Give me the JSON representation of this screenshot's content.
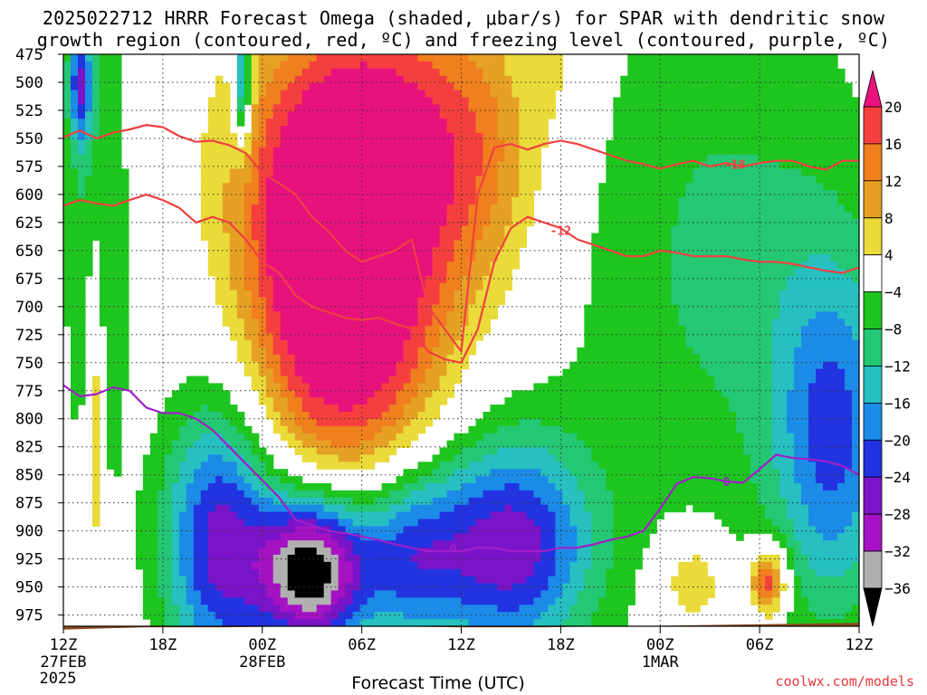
{
  "title_line1": "2025022712 HRRR Forecast Omega (shaded, μbar/s) for SPAR with dendritic snow",
  "title_line2": "growth region (contoured, red, ºC) and freezing level (contoured, purple, ºC)",
  "credit": "coolwx.com/models",
  "chart_data": {
    "type": "heatmap",
    "title": "2025022712 HRRR Forecast Omega (shaded, μbar/s) for SPAR with dendritic snow growth region (contoured, red, ºC) and freezing level (contoured, purple, ºC)",
    "xlabel": "Forecast Time (UTC)",
    "ylabel": "",
    "x_range_hours": [
      0,
      48
    ],
    "y_range_hpa": [
      475,
      985
    ],
    "y_scale": "linear-inverted",
    "grid": true,
    "x_ticks": [
      {
        "hour": 0,
        "label": "12Z",
        "sub1": "27FEB",
        "sub2": "2025"
      },
      {
        "hour": 6,
        "label": "18Z",
        "sub1": "",
        "sub2": ""
      },
      {
        "hour": 12,
        "label": "00Z",
        "sub1": "28FEB",
        "sub2": ""
      },
      {
        "hour": 18,
        "label": "06Z",
        "sub1": "",
        "sub2": ""
      },
      {
        "hour": 24,
        "label": "12Z",
        "sub1": "",
        "sub2": ""
      },
      {
        "hour": 30,
        "label": "18Z",
        "sub1": "",
        "sub2": ""
      },
      {
        "hour": 36,
        "label": "00Z",
        "sub1": "1MAR",
        "sub2": ""
      },
      {
        "hour": 42,
        "label": "06Z",
        "sub1": "",
        "sub2": ""
      },
      {
        "hour": 48,
        "label": "12Z",
        "sub1": "",
        "sub2": ""
      }
    ],
    "y_ticks": [
      475,
      500,
      525,
      550,
      575,
      600,
      625,
      650,
      675,
      700,
      725,
      750,
      775,
      800,
      825,
      850,
      875,
      900,
      925,
      950,
      975
    ],
    "colorbar": {
      "placement": "right",
      "labels": [
        "20",
        "16",
        "12",
        "8",
        "4",
        "−4",
        "−8",
        "−12",
        "−16",
        "−20",
        "−24",
        "−28",
        "−32",
        "−36"
      ],
      "bins": [
        {
          "lo": 20,
          "hi": null,
          "color": "#e8127d"
        },
        {
          "lo": 16,
          "hi": 20,
          "color": "#f53f3f"
        },
        {
          "lo": 12,
          "hi": 16,
          "color": "#f07f1e"
        },
        {
          "lo": 8,
          "hi": 12,
          "color": "#e6a125"
        },
        {
          "lo": 4,
          "hi": 8,
          "color": "#eadb3a"
        },
        {
          "lo": -4,
          "hi": 4,
          "color": "#ffffff"
        },
        {
          "lo": -8,
          "hi": -4,
          "color": "#1ec51e"
        },
        {
          "lo": -12,
          "hi": -8,
          "color": "#24c774"
        },
        {
          "lo": -16,
          "hi": -12,
          "color": "#26c0c0"
        },
        {
          "lo": -20,
          "hi": -16,
          "color": "#1c8be8"
        },
        {
          "lo": -24,
          "hi": -20,
          "color": "#2233e0"
        },
        {
          "lo": -28,
          "hi": -24,
          "color": "#7a14c8"
        },
        {
          "lo": -32,
          "hi": -28,
          "color": "#a412c4"
        },
        {
          "lo": -36,
          "hi": -32,
          "color": "#b0b0b0"
        },
        {
          "lo": null,
          "hi": -36,
          "color": "#000000"
        }
      ]
    },
    "omega_features": [
      {
        "hour": 15.0,
        "hpa": 665,
        "peak": 24,
        "sx": 3.2,
        "sy": 130
      },
      {
        "hour": 19.5,
        "hpa": 660,
        "peak": 18,
        "sx": 3.0,
        "sy": 160
      },
      {
        "hour": 18.5,
        "hpa": 560,
        "peak": 8,
        "sx": 6.0,
        "sy": 80
      },
      {
        "hour": 25.0,
        "hpa": 560,
        "peak": 10,
        "sx": 2.8,
        "sy": 100
      },
      {
        "hour": 30.0,
        "hpa": 475,
        "peak": 4,
        "sx": 1.0,
        "sy": 60
      },
      {
        "hour": 9.5,
        "hpa": 910,
        "peak": -26,
        "sx": 2.5,
        "sy": 90
      },
      {
        "hour": 15.0,
        "hpa": 935,
        "peak": -40,
        "sx": 2.2,
        "sy": 50
      },
      {
        "hour": 20.5,
        "hpa": 920,
        "peak": -22,
        "sx": 2.5,
        "sy": 60
      },
      {
        "hour": 27.0,
        "hpa": 915,
        "peak": -26,
        "sx": 3.5,
        "sy": 70
      },
      {
        "hour": 2.0,
        "hpa": 640,
        "peak": -10,
        "sx": 1.4,
        "sy": 170
      },
      {
        "hour": 40.0,
        "hpa": 660,
        "peak": -9,
        "sx": 7.0,
        "sy": 200
      },
      {
        "hour": 46.5,
        "hpa": 820,
        "peak": -18,
        "sx": 2.5,
        "sy": 110
      },
      {
        "hour": 38.0,
        "hpa": 945,
        "peak": 10,
        "sx": 1.5,
        "sy": 30
      },
      {
        "hour": 42.5,
        "hpa": 945,
        "peak": 22,
        "sx": 0.8,
        "sy": 22
      },
      {
        "hour": 1.9,
        "hpa": 780,
        "peak": 12,
        "sx": 0.4,
        "sy": 120
      },
      {
        "hour": 10.8,
        "hpa": 500,
        "peak": -22,
        "sx": 0.4,
        "sy": 40
      },
      {
        "hour": 1.0,
        "hpa": 500,
        "peak": -20,
        "sx": 0.5,
        "sy": 40
      }
    ],
    "series": [
      {
        "name": "-18",
        "color": "#f04040",
        "x": [
          0,
          1,
          2,
          3,
          4,
          5,
          6,
          7,
          8,
          9,
          10,
          11,
          12,
          13,
          14,
          15,
          16,
          17,
          18,
          19,
          20,
          21,
          22,
          23,
          24,
          25,
          26,
          27,
          28,
          29,
          30,
          31,
          32,
          33,
          34,
          35,
          36,
          37,
          38,
          39,
          40,
          41,
          42,
          43,
          44,
          45,
          46,
          47,
          48
        ],
        "y": [
          549,
          543,
          550,
          545,
          542,
          538,
          540,
          548,
          553,
          552,
          556,
          563,
          581,
          590,
          600,
          620,
          633,
          650,
          660,
          655,
          650,
          640,
          700,
          720,
          740,
          600,
          558,
          555,
          560,
          555,
          552,
          555,
          560,
          565,
          570,
          573,
          577,
          573,
          570,
          575,
          572,
          575,
          572,
          570,
          570,
          575,
          578,
          570,
          570
        ]
      },
      {
        "name": "-12",
        "color": "#f04040",
        "x": [
          0,
          1,
          2,
          3,
          4,
          5,
          6,
          7,
          8,
          9,
          10,
          11,
          12,
          13,
          14,
          15,
          16,
          17,
          18,
          19,
          20,
          21,
          22,
          23,
          24,
          25,
          26,
          27,
          28,
          29,
          30,
          31,
          32,
          33,
          34,
          35,
          36,
          37,
          38,
          39,
          40,
          41,
          42,
          43,
          44,
          45,
          46,
          47,
          48
        ],
        "y": [
          610,
          605,
          608,
          610,
          605,
          600,
          605,
          612,
          625,
          620,
          625,
          640,
          660,
          670,
          690,
          700,
          705,
          710,
          712,
          710,
          715,
          720,
          740,
          747,
          750,
          720,
          660,
          630,
          620,
          625,
          630,
          640,
          645,
          650,
          655,
          655,
          650,
          652,
          655,
          655,
          655,
          658,
          660,
          660,
          662,
          665,
          668,
          670,
          665
        ]
      },
      {
        "name": "0",
        "color": "#a020c8",
        "x": [
          0,
          1,
          2,
          3,
          4,
          5,
          6,
          7,
          8,
          9,
          10,
          11,
          12,
          13,
          14,
          15,
          16,
          17,
          18,
          19,
          20,
          21,
          22,
          23,
          24,
          25,
          26,
          27,
          28,
          29,
          30,
          31,
          32,
          33,
          34,
          35,
          36,
          37,
          38,
          39,
          40,
          41,
          42,
          43,
          44,
          45,
          46,
          47,
          48
        ],
        "y": [
          770,
          780,
          778,
          772,
          775,
          790,
          795,
          795,
          800,
          810,
          825,
          840,
          855,
          870,
          890,
          895,
          900,
          902,
          905,
          908,
          912,
          915,
          918,
          918,
          918,
          915,
          915,
          918,
          918,
          918,
          915,
          915,
          912,
          908,
          905,
          900,
          880,
          858,
          852,
          853,
          856,
          857,
          845,
          832,
          835,
          836,
          838,
          842,
          850
        ]
      }
    ],
    "contour_labels": [
      {
        "text": "-18",
        "hour": 40.5,
        "hpa": 573
      },
      {
        "text": "-12",
        "hour": 30.0,
        "hpa": 632
      },
      {
        "text": "0",
        "hour": 23.5,
        "hpa": 915
      },
      {
        "text": "0",
        "hour": 40.0,
        "hpa": 856
      }
    ],
    "terrain_hpa": [
      988,
      986,
      986,
      985,
      985,
      986,
      986,
      985,
      984,
      983,
      982
    ]
  }
}
